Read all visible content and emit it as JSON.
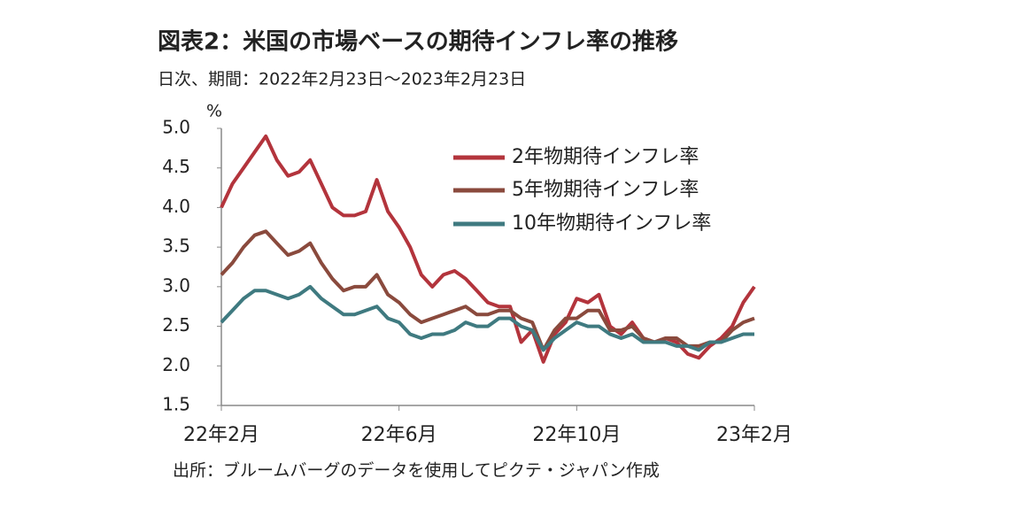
{
  "chart_data": {
    "type": "line",
    "title": "図表2：米国の市場ベースの期待インフレ率の推移",
    "subtitle": "日次、期間：2022年2月23日～2023年2月23日",
    "y_label": "%",
    "source": "出所：ブルームバーグのデータを使用してピクテ・ジャパン作成",
    "categories": [
      "22年2月",
      null,
      null,
      null,
      null,
      null,
      null,
      null,
      null,
      null,
      null,
      null,
      null,
      null,
      null,
      null,
      "22年6月",
      null,
      null,
      null,
      null,
      null,
      null,
      null,
      null,
      null,
      null,
      null,
      null,
      null,
      null,
      null,
      "22年10月",
      null,
      null,
      null,
      null,
      null,
      null,
      null,
      null,
      null,
      null,
      null,
      null,
      null,
      null,
      null,
      "23年2月"
    ],
    "series": [
      {
        "name": "2年物期待インフレ率",
        "color": "#b3343c",
        "values": [
          4.0,
          4.3,
          4.5,
          4.7,
          4.9,
          4.6,
          4.4,
          4.45,
          4.6,
          4.3,
          4.0,
          3.9,
          3.9,
          3.95,
          4.35,
          3.95,
          3.75,
          3.5,
          3.15,
          3.0,
          3.15,
          3.2,
          3.1,
          2.95,
          2.8,
          2.75,
          2.75,
          2.3,
          2.45,
          2.05,
          2.4,
          2.55,
          2.85,
          2.8,
          2.9,
          2.5,
          2.4,
          2.55,
          2.35,
          2.3,
          2.35,
          2.3,
          2.15,
          2.1,
          2.25,
          2.35,
          2.5,
          2.8,
          3.0
        ]
      },
      {
        "name": "5年物期待インフレ率",
        "color": "#8a4a3d",
        "values": [
          3.15,
          3.3,
          3.5,
          3.65,
          3.7,
          3.55,
          3.4,
          3.45,
          3.55,
          3.3,
          3.1,
          2.95,
          3.0,
          3.0,
          3.15,
          2.9,
          2.8,
          2.65,
          2.55,
          2.6,
          2.65,
          2.7,
          2.75,
          2.65,
          2.65,
          2.7,
          2.7,
          2.6,
          2.55,
          2.2,
          2.45,
          2.6,
          2.6,
          2.7,
          2.7,
          2.45,
          2.45,
          2.5,
          2.35,
          2.3,
          2.35,
          2.35,
          2.25,
          2.25,
          2.3,
          2.3,
          2.45,
          2.55,
          2.6
        ]
      },
      {
        "name": "10年物期待インフレ率",
        "color": "#3f7a80",
        "values": [
          2.55,
          2.7,
          2.85,
          2.95,
          2.95,
          2.9,
          2.85,
          2.9,
          3.0,
          2.85,
          2.75,
          2.65,
          2.65,
          2.7,
          2.75,
          2.6,
          2.55,
          2.4,
          2.35,
          2.4,
          2.4,
          2.45,
          2.55,
          2.5,
          2.5,
          2.6,
          2.6,
          2.5,
          2.45,
          2.2,
          2.35,
          2.45,
          2.55,
          2.5,
          2.5,
          2.4,
          2.35,
          2.4,
          2.3,
          2.3,
          2.3,
          2.25,
          2.25,
          2.2,
          2.3,
          2.3,
          2.35,
          2.4,
          2.4
        ]
      }
    ],
    "ylim": [
      1.5,
      5.0
    ],
    "yticks": [
      1.5,
      {
        "value": 2,
        "label": "2.0"
      },
      2.5,
      {
        "value": 3,
        "label": "3.0"
      },
      3.5,
      {
        "value": 4,
        "label": "4.0"
      },
      4.5,
      {
        "value": 5,
        "label": "5.0"
      }
    ],
    "grid": false,
    "legend": "upper right"
  }
}
